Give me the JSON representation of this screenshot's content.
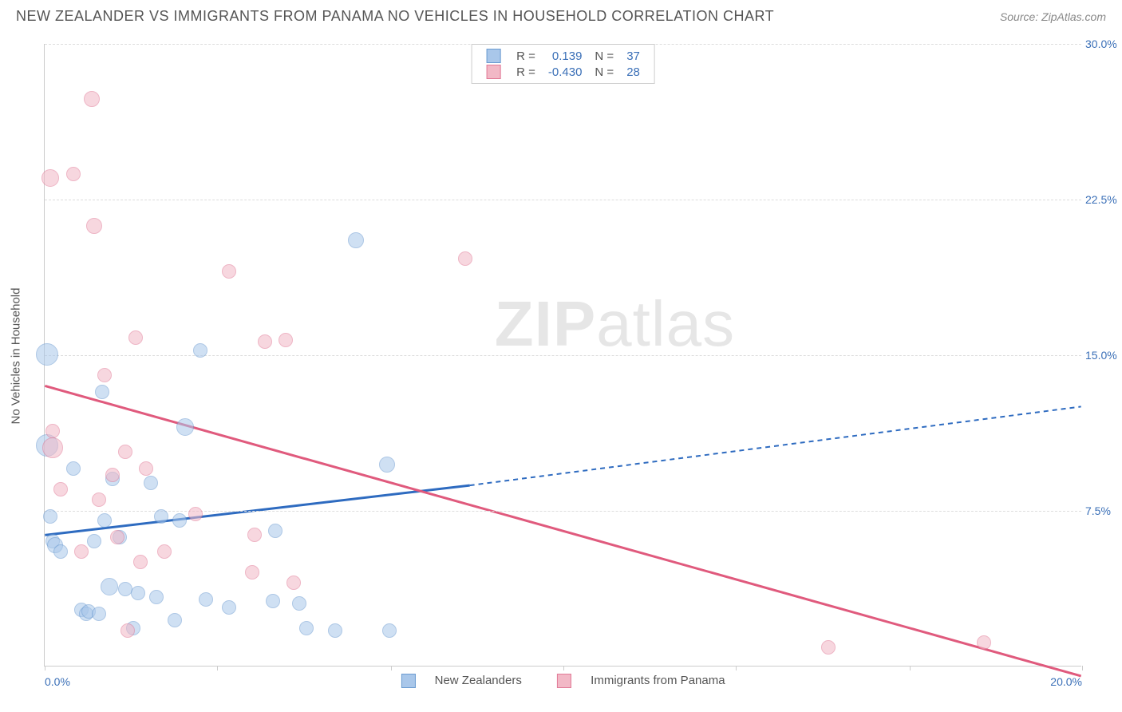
{
  "title": "NEW ZEALANDER VS IMMIGRANTS FROM PANAMA NO VEHICLES IN HOUSEHOLD CORRELATION CHART",
  "source": "Source: ZipAtlas.com",
  "y_axis_label": "No Vehicles in Household",
  "watermark": {
    "bold": "ZIP",
    "rest": "atlas"
  },
  "chart": {
    "type": "scatter-correlation",
    "xlim": [
      0,
      20
    ],
    "ylim": [
      0,
      30
    ],
    "x_ticks": [
      0,
      3.33,
      6.67,
      10,
      13.33,
      16.67,
      20
    ],
    "x_tick_labels": [
      "0.0%",
      "",
      "",
      "",
      "",
      "",
      "20.0%"
    ],
    "y_ticks": [
      7.5,
      15.0,
      22.5,
      30.0
    ],
    "y_tick_labels": [
      "7.5%",
      "15.0%",
      "22.5%",
      "30.0%"
    ],
    "grid_color": "#dddddd",
    "axis_color": "#cccccc",
    "background_color": "#ffffff",
    "label_color": "#3a6fb7",
    "title_color": "#555555",
    "title_fontsize": 18,
    "tick_fontsize": 14
  },
  "series": [
    {
      "key": "nz",
      "label": "New Zealanders",
      "fill": "#a9c7ea",
      "stroke": "#6b9bd1",
      "fill_opacity": 0.55,
      "line_color": "#2e6bc0",
      "line_width": 3,
      "r_value": "0.139",
      "n_value": "37",
      "trend": {
        "x1": 0,
        "y1": 6.3,
        "x2_solid": 8.2,
        "y2_solid": 8.7,
        "x2": 20,
        "y2": 12.5
      },
      "points": [
        {
          "x": 0.05,
          "y": 15.0,
          "r": 14
        },
        {
          "x": 0.05,
          "y": 10.6,
          "r": 14
        },
        {
          "x": 0.1,
          "y": 7.2,
          "r": 9
        },
        {
          "x": 0.15,
          "y": 6.0,
          "r": 9
        },
        {
          "x": 0.2,
          "y": 5.8,
          "r": 10
        },
        {
          "x": 0.3,
          "y": 5.5,
          "r": 9
        },
        {
          "x": 0.55,
          "y": 9.5,
          "r": 9
        },
        {
          "x": 0.7,
          "y": 2.7,
          "r": 9
        },
        {
          "x": 0.8,
          "y": 2.5,
          "r": 9
        },
        {
          "x": 0.85,
          "y": 2.6,
          "r": 9
        },
        {
          "x": 0.95,
          "y": 6.0,
          "r": 9
        },
        {
          "x": 1.05,
          "y": 2.5,
          "r": 9
        },
        {
          "x": 1.1,
          "y": 13.2,
          "r": 9
        },
        {
          "x": 1.15,
          "y": 7.0,
          "r": 9
        },
        {
          "x": 1.25,
          "y": 3.8,
          "r": 11
        },
        {
          "x": 1.3,
          "y": 9.0,
          "r": 9
        },
        {
          "x": 1.45,
          "y": 6.2,
          "r": 9
        },
        {
          "x": 1.55,
          "y": 3.7,
          "r": 9
        },
        {
          "x": 1.7,
          "y": 1.8,
          "r": 9
        },
        {
          "x": 1.8,
          "y": 3.5,
          "r": 9
        },
        {
          "x": 2.05,
          "y": 8.8,
          "r": 9
        },
        {
          "x": 2.15,
          "y": 3.3,
          "r": 9
        },
        {
          "x": 2.25,
          "y": 7.2,
          "r": 9
        },
        {
          "x": 2.5,
          "y": 2.2,
          "r": 9
        },
        {
          "x": 2.6,
          "y": 7.0,
          "r": 9
        },
        {
          "x": 2.7,
          "y": 11.5,
          "r": 11
        },
        {
          "x": 3.0,
          "y": 15.2,
          "r": 9
        },
        {
          "x": 3.1,
          "y": 3.2,
          "r": 9
        },
        {
          "x": 3.55,
          "y": 2.8,
          "r": 9
        },
        {
          "x": 4.4,
          "y": 3.1,
          "r": 9
        },
        {
          "x": 4.45,
          "y": 6.5,
          "r": 9
        },
        {
          "x": 4.9,
          "y": 3.0,
          "r": 9
        },
        {
          "x": 5.05,
          "y": 1.8,
          "r": 9
        },
        {
          "x": 5.6,
          "y": 1.7,
          "r": 9
        },
        {
          "x": 6.0,
          "y": 20.5,
          "r": 10
        },
        {
          "x": 6.6,
          "y": 9.7,
          "r": 10
        },
        {
          "x": 6.65,
          "y": 1.7,
          "r": 9
        }
      ]
    },
    {
      "key": "panama",
      "label": "Immigrants from Panama",
      "fill": "#f2b8c6",
      "stroke": "#e17a97",
      "fill_opacity": 0.55,
      "line_color": "#e05a7d",
      "line_width": 3,
      "r_value": "-0.430",
      "n_value": "28",
      "trend": {
        "x1": 0,
        "y1": 13.5,
        "x2_solid": 20,
        "y2_solid": -0.5,
        "x2": 20,
        "y2": -0.5
      },
      "points": [
        {
          "x": 0.1,
          "y": 23.5,
          "r": 11
        },
        {
          "x": 0.15,
          "y": 11.3,
          "r": 9
        },
        {
          "x": 0.15,
          "y": 10.5,
          "r": 13
        },
        {
          "x": 0.3,
          "y": 8.5,
          "r": 9
        },
        {
          "x": 0.55,
          "y": 23.7,
          "r": 9
        },
        {
          "x": 0.7,
          "y": 5.5,
          "r": 9
        },
        {
          "x": 0.9,
          "y": 27.3,
          "r": 10
        },
        {
          "x": 0.95,
          "y": 21.2,
          "r": 10
        },
        {
          "x": 1.05,
          "y": 8.0,
          "r": 9
        },
        {
          "x": 1.15,
          "y": 14.0,
          "r": 9
        },
        {
          "x": 1.3,
          "y": 9.2,
          "r": 9
        },
        {
          "x": 1.4,
          "y": 6.2,
          "r": 9
        },
        {
          "x": 1.55,
          "y": 10.3,
          "r": 9
        },
        {
          "x": 1.6,
          "y": 1.7,
          "r": 9
        },
        {
          "x": 1.75,
          "y": 15.8,
          "r": 9
        },
        {
          "x": 1.85,
          "y": 5.0,
          "r": 9
        },
        {
          "x": 1.95,
          "y": 9.5,
          "r": 9
        },
        {
          "x": 2.3,
          "y": 5.5,
          "r": 9
        },
        {
          "x": 2.9,
          "y": 7.3,
          "r": 9
        },
        {
          "x": 3.55,
          "y": 19.0,
          "r": 9
        },
        {
          "x": 4.0,
          "y": 4.5,
          "r": 9
        },
        {
          "x": 4.05,
          "y": 6.3,
          "r": 9
        },
        {
          "x": 4.25,
          "y": 15.6,
          "r": 9
        },
        {
          "x": 4.65,
          "y": 15.7,
          "r": 9
        },
        {
          "x": 4.8,
          "y": 4.0,
          "r": 9
        },
        {
          "x": 8.1,
          "y": 19.6,
          "r": 9
        },
        {
          "x": 15.1,
          "y": 0.9,
          "r": 9
        },
        {
          "x": 18.1,
          "y": 1.1,
          "r": 9
        }
      ]
    }
  ],
  "legend_top_headers": {
    "r": "R =",
    "n": "N ="
  }
}
